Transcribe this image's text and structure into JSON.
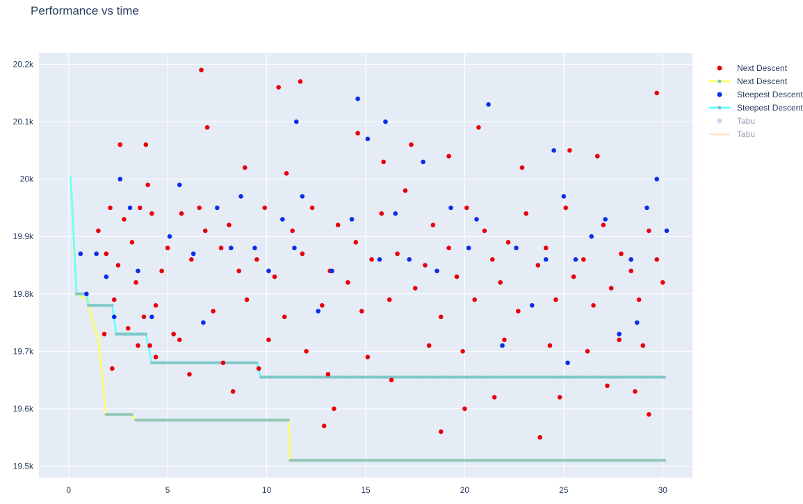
{
  "title": "Performance vs time",
  "chart_data": {
    "type": "scatter",
    "title": "Performance vs time",
    "xlabel": "",
    "ylabel": "",
    "xlim": [
      -1.5,
      31.5
    ],
    "ylim": [
      19.48,
      20.22
    ],
    "x_ticks": [
      {
        "value": 0,
        "label": "0"
      },
      {
        "value": 5,
        "label": "5"
      },
      {
        "value": 10,
        "label": "10"
      },
      {
        "value": 15,
        "label": "15"
      },
      {
        "value": 20,
        "label": "20"
      },
      {
        "value": 25,
        "label": "25"
      },
      {
        "value": 30,
        "label": "30"
      }
    ],
    "y_ticks": [
      {
        "value": 19.5,
        "label": "19.5k"
      },
      {
        "value": 19.6,
        "label": "19.6k"
      },
      {
        "value": 19.7,
        "label": "19.7k"
      },
      {
        "value": 19.8,
        "label": "19.8k"
      },
      {
        "value": 19.9,
        "label": "19.9k"
      },
      {
        "value": 20.0,
        "label": "20k"
      },
      {
        "value": 20.1,
        "label": "20.1k"
      },
      {
        "value": 20.2,
        "label": "20.2k"
      }
    ],
    "grid": true,
    "legend_position": "right",
    "colors": {
      "next_descent_points": "#e8000b",
      "next_descent_line": "#ffff66",
      "steepest_descent_points": "#0a2ee8",
      "steepest_descent_line": "#66ffff",
      "tabu_points": "#c88fe8",
      "tabu_line": "#ffcc99",
      "line_marker": "#7fbfbf",
      "plot_bg": "#e5ecf6"
    },
    "series": [
      {
        "name": "Next Descent",
        "mode": "markers",
        "color": "#e8000b",
        "x": [
          1.5,
          1.9,
          2.1,
          2.3,
          2.5,
          2.8,
          3.0,
          3.2,
          3.4,
          3.6,
          3.8,
          4.0,
          4.2,
          4.4,
          4.7,
          5.0,
          5.3,
          5.7,
          6.2,
          6.6,
          6.9,
          7.3,
          7.7,
          8.1,
          8.6,
          9.0,
          9.5,
          9.9,
          10.4,
          10.9,
          11.3,
          11.8,
          12.3,
          12.8,
          13.2,
          13.6,
          14.1,
          14.5,
          14.8,
          15.3,
          15.8,
          16.2,
          16.6,
          17.0,
          17.5,
          18.0,
          18.4,
          18.8,
          19.2,
          19.6,
          20.1,
          20.5,
          21.0,
          21.4,
          21.8,
          22.2,
          22.7,
          23.1,
          23.7,
          24.1,
          24.6,
          25.1,
          25.5,
          26.0,
          26.5,
          27.0,
          27.4,
          27.9,
          28.4,
          28.8,
          29.3,
          29.7,
          30.0,
          2.6,
          3.9,
          6.7,
          7.0,
          8.9,
          10.6,
          11.7,
          15.9,
          19.2,
          20.7,
          25.3,
          29.7,
          4.1,
          12.9,
          13.4,
          18.8,
          20.0,
          23.8,
          29.3,
          6.1,
          13.1,
          9.6,
          4.4,
          2.2,
          8.3,
          16.3,
          21.5,
          24.8,
          27.2,
          28.6,
          11.0,
          14.6,
          17.3,
          22.9,
          26.7,
          10.1,
          5.6,
          1.8,
          3.5,
          7.8,
          12.0,
          15.1,
          18.2,
          19.9,
          22.0,
          24.3,
          26.2,
          27.8,
          29.0
        ],
        "y": [
          19.91,
          19.87,
          19.95,
          19.79,
          19.85,
          19.93,
          19.74,
          19.89,
          19.82,
          19.95,
          19.76,
          19.99,
          19.94,
          19.78,
          19.84,
          19.88,
          19.73,
          19.94,
          19.86,
          19.95,
          19.91,
          19.77,
          19.88,
          19.92,
          19.84,
          19.79,
          19.86,
          19.95,
          19.83,
          19.76,
          19.91,
          19.87,
          19.95,
          19.78,
          19.84,
          19.92,
          19.82,
          19.89,
          19.77,
          19.86,
          19.94,
          19.79,
          19.87,
          19.98,
          19.81,
          19.85,
          19.92,
          19.76,
          19.88,
          19.83,
          19.95,
          19.79,
          19.91,
          19.86,
          19.82,
          19.89,
          19.77,
          19.94,
          19.85,
          19.88,
          19.79,
          19.95,
          19.83,
          19.86,
          19.78,
          19.92,
          19.81,
          19.87,
          19.84,
          19.79,
          19.91,
          19.86,
          19.82,
          20.06,
          20.06,
          20.19,
          20.09,
          20.02,
          20.16,
          20.17,
          20.03,
          20.04,
          20.09,
          20.05,
          20.15,
          19.71,
          19.57,
          19.6,
          19.56,
          19.6,
          19.55,
          19.59,
          19.66,
          19.66,
          19.67,
          19.69,
          19.67,
          19.63,
          19.65,
          19.62,
          19.62,
          19.64,
          19.63,
          20.01,
          20.08,
          20.06,
          20.02,
          20.04,
          19.72,
          19.72,
          19.73,
          19.71,
          19.68,
          19.7,
          19.69,
          19.71,
          19.7,
          19.72,
          19.71,
          19.7,
          19.72,
          19.71
        ]
      },
      {
        "name": "Next Descent",
        "mode": "lines+markers",
        "color": "#ffff66",
        "x": [
          0.1,
          0.4,
          0.9,
          1.5,
          1.9,
          3.2,
          3.4,
          11.1,
          11.2,
          30.1
        ],
        "y": [
          20.005,
          19.8,
          19.79,
          19.72,
          19.59,
          19.59,
          19.58,
          19.58,
          19.51,
          19.51
        ]
      },
      {
        "name": "Steepest Descent",
        "mode": "markers",
        "color": "#0a2ee8",
        "x": [
          0.6,
          0.9,
          1.4,
          1.9,
          2.3,
          2.6,
          3.1,
          3.5,
          4.2,
          5.1,
          5.6,
          6.3,
          6.8,
          7.5,
          8.2,
          8.7,
          9.4,
          10.1,
          10.8,
          11.4,
          11.8,
          12.6,
          13.3,
          14.3,
          14.6,
          15.1,
          15.7,
          16.5,
          17.2,
          17.9,
          18.6,
          19.3,
          20.2,
          20.6,
          21.2,
          21.9,
          22.6,
          23.4,
          24.1,
          24.5,
          25.0,
          25.6,
          26.4,
          27.1,
          27.8,
          28.4,
          29.2,
          29.7,
          30.2,
          16.0,
          11.5,
          25.2,
          28.7
        ],
        "y": [
          19.87,
          19.8,
          19.87,
          19.83,
          19.76,
          20.0,
          19.95,
          19.84,
          19.76,
          19.9,
          19.99,
          19.87,
          19.75,
          19.95,
          19.88,
          19.97,
          19.88,
          19.84,
          19.93,
          19.88,
          19.97,
          19.77,
          19.84,
          19.93,
          20.14,
          20.07,
          19.86,
          19.94,
          19.86,
          20.03,
          19.84,
          19.95,
          19.88,
          19.93,
          20.13,
          19.71,
          19.88,
          19.78,
          19.86,
          20.05,
          19.97,
          19.86,
          19.9,
          19.93,
          19.73,
          19.86,
          19.95,
          20.0,
          19.91,
          20.1,
          20.1,
          19.68,
          19.75
        ]
      },
      {
        "name": "Steepest Descent",
        "mode": "lines+markers",
        "color": "#66ffff",
        "x": [
          0.1,
          0.4,
          0.9,
          1.0,
          2.2,
          2.4,
          3.9,
          4.2,
          9.5,
          9.7,
          30.1
        ],
        "y": [
          20.005,
          19.8,
          19.8,
          19.78,
          19.78,
          19.73,
          19.73,
          19.68,
          19.68,
          19.655,
          19.655
        ]
      },
      {
        "name": "Tabu",
        "mode": "markers",
        "color": "#c88fe8",
        "legend_only": true,
        "x": [],
        "y": []
      },
      {
        "name": "Tabu",
        "mode": "lines",
        "color": "#ffcc99",
        "legend_only": true,
        "x": [],
        "y": []
      }
    ]
  }
}
